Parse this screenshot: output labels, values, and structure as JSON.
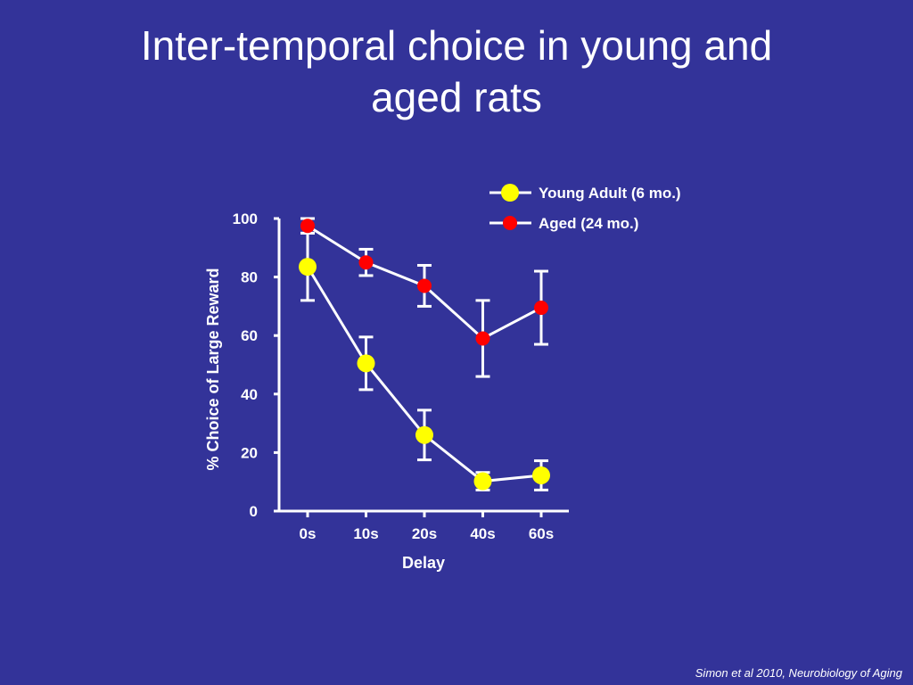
{
  "slide": {
    "title_line1": "Inter-temporal choice in young and",
    "title_line2": "aged rats",
    "citation": "Simon et al 2010, Neurobiology of Aging"
  },
  "colors": {
    "background": "#333399",
    "axis": "#ffffff",
    "young": "#ffff00",
    "aged": "#ff0000"
  },
  "chart_data": {
    "type": "line",
    "title": "",
    "xlabel": "Delay",
    "ylabel": "% Choice of Large Reward",
    "categories": [
      "0s",
      "10s",
      "20s",
      "40s",
      "60s"
    ],
    "yticks": [
      "0",
      "20",
      "40",
      "60",
      "80",
      "100"
    ],
    "ylim": [
      0,
      100
    ],
    "grid": false,
    "legend_position": "top-right",
    "series": [
      {
        "name": "Young Adult (6 mo.)",
        "color": "#ffff00",
        "values": [
          83.5,
          50.5,
          26,
          10.2,
          12.2
        ],
        "errors": [
          11.5,
          9,
          8.5,
          3,
          5
        ]
      },
      {
        "name": "Aged (24 mo.)",
        "color": "#ff0000",
        "values": [
          97.5,
          85,
          77,
          59,
          69.5
        ],
        "errors": [
          2.5,
          4.5,
          7,
          13,
          12.5
        ]
      }
    ]
  }
}
